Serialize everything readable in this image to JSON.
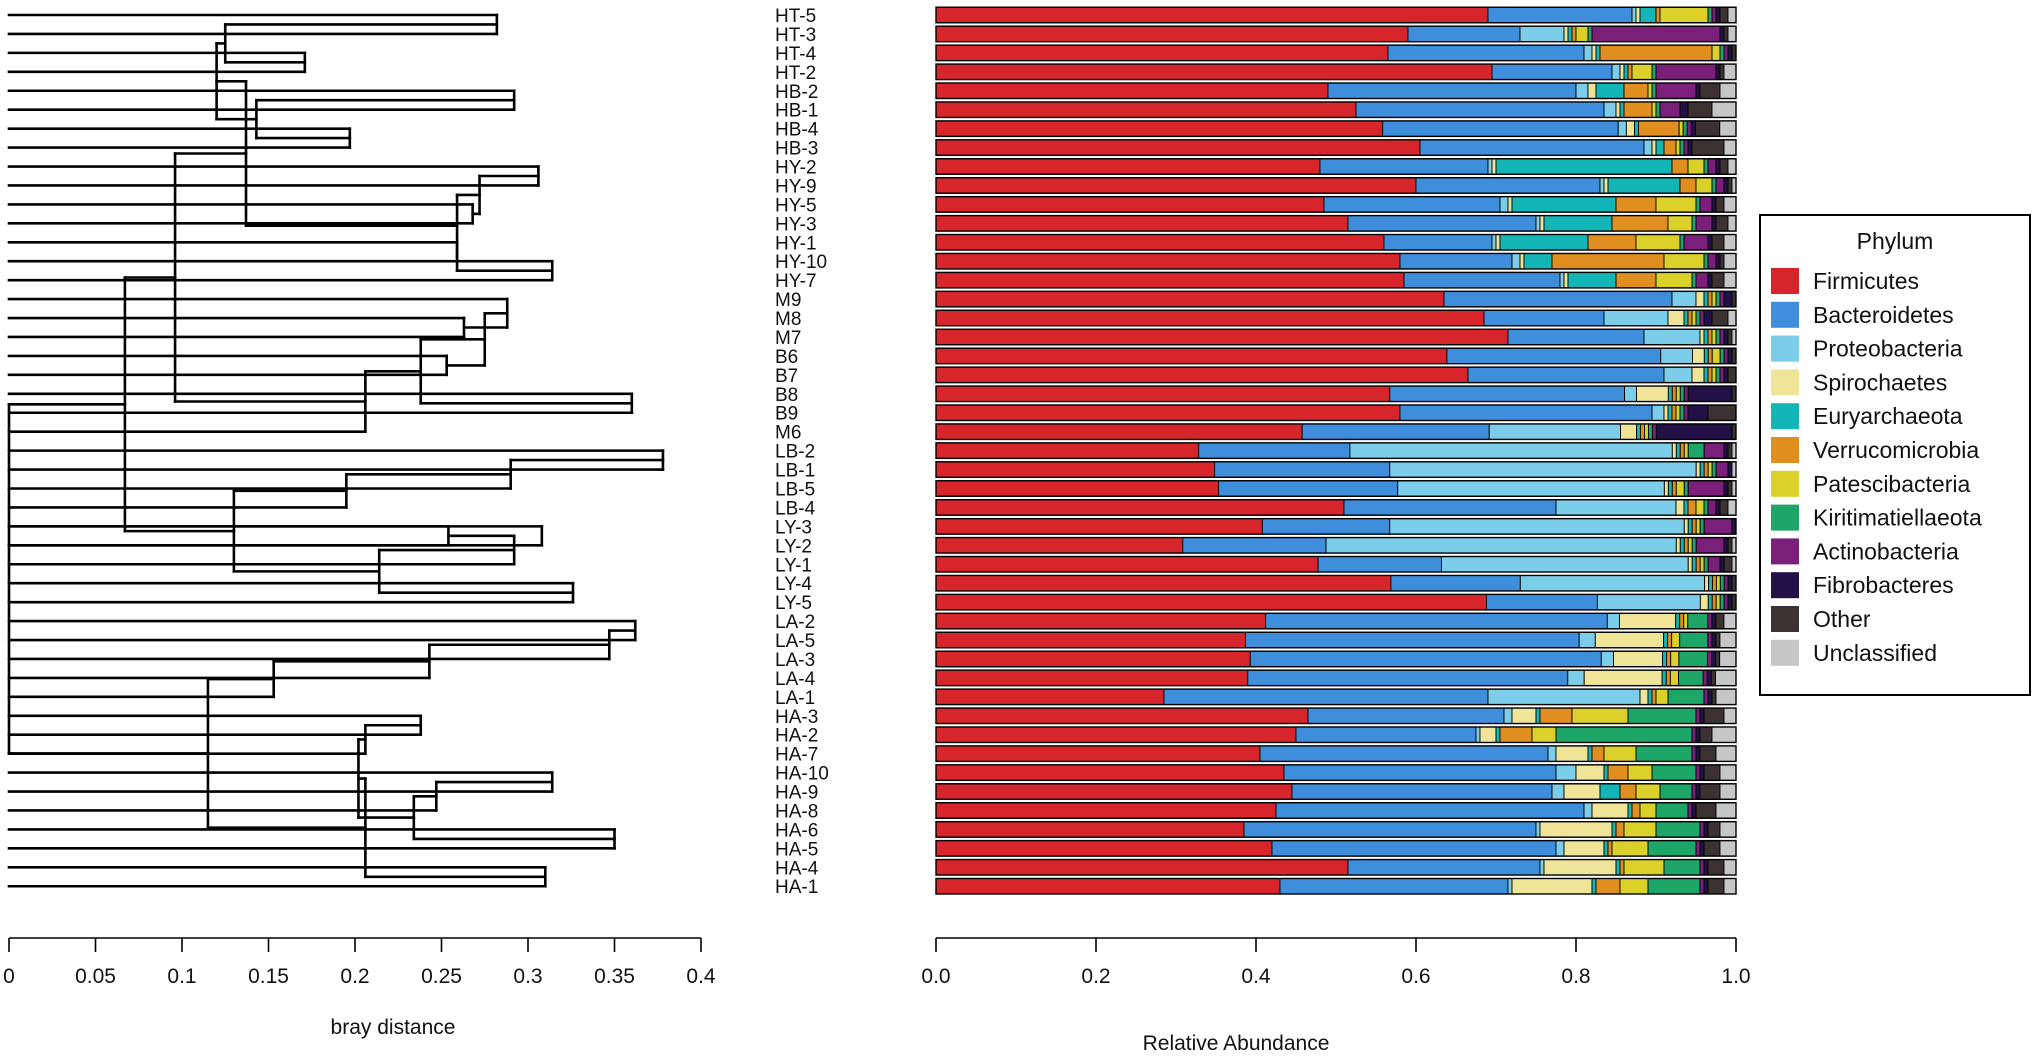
{
  "chart_data": [
    {
      "type": "dendrogram",
      "xlabel": "bray distance",
      "xlim": [
        0,
        0.4
      ],
      "ticks": [
        0,
        0.05,
        0.1,
        0.15,
        0.2,
        0.25,
        0.3,
        0.35,
        0.4
      ],
      "tick_labels": [
        "0",
        "0.05",
        "0.1",
        "0.15",
        "0.2",
        "0.25",
        "0.3",
        "0.35",
        "0.4"
      ],
      "leaves": [
        "HT-5",
        "HT-3",
        "HT-4",
        "HT-2",
        "HB-2",
        "HB-1",
        "HB-4",
        "HB-3",
        "HY-2",
        "HY-9",
        "HY-5",
        "HY-3",
        "HY-1",
        "HY-10",
        "HY-7",
        "M9",
        "M8",
        "M7",
        "B6",
        "B7",
        "B8",
        "B9",
        "M6",
        "LB-2",
        "LB-1",
        "LB-5",
        "LB-4",
        "LY-3",
        "LY-2",
        "LY-1",
        "LY-4",
        "LY-5",
        "LA-2",
        "LA-5",
        "LA-3",
        "LA-4",
        "LA-1",
        "HA-3",
        "HA-2",
        "HA-7",
        "HA-10",
        "HA-9",
        "HA-8",
        "HA-6",
        "HA-5",
        "HA-4",
        "HA-1"
      ],
      "merges": [
        {
          "a": "HT-5",
          "b": "HT-3",
          "height": 0.282
        },
        {
          "a": "HT-4",
          "b": "HT-2",
          "height": 0.171
        },
        {
          "a": "HB-2",
          "b": "HB-1",
          "height": 0.292
        },
        {
          "a": "HB-4",
          "b": "HB-3",
          "height": 0.197
        },
        {
          "a": "HY-2",
          "b": "HY-9",
          "height": 0.306
        },
        {
          "a": "HY-10",
          "b": "HY-7",
          "height": 0.314
        },
        {
          "a": "M8",
          "b": "M7",
          "height": 0.263
        },
        {
          "a": "B6",
          "b": "B7",
          "height": 0.253
        },
        {
          "a": "B8",
          "b": "B9",
          "height": 0.36
        },
        {
          "a": "LB-2",
          "b": "LB-1",
          "height": 0.378
        },
        {
          "a": "LY-3",
          "b": "LY-2",
          "height": 0.308
        },
        {
          "a": "LY-4",
          "b": "LY-5",
          "height": 0.326
        },
        {
          "a": "LA-2",
          "b": "LA-5",
          "height": 0.362
        },
        {
          "a": "HA-10",
          "b": "HA-9",
          "height": 0.314
        },
        {
          "a": "HA-6",
          "b": "HA-5",
          "height": 0.35
        },
        {
          "a": "HA-4",
          "b": "HA-1",
          "height": 0.31
        }
      ]
    },
    {
      "type": "bar",
      "orientation": "horizontal",
      "stacked": true,
      "xlabel": "Relative Abundance",
      "xlim": [
        0,
        1
      ],
      "ticks": [
        0,
        0.2,
        0.4,
        0.6,
        0.8,
        1.0
      ],
      "tick_labels": [
        "0.0",
        "0.2",
        "0.4",
        "0.6",
        "0.8",
        "1.0"
      ],
      "legend_title": "Phylum",
      "legend_position": "right",
      "phyla": [
        "Firmicutes",
        "Bacteroidetes",
        "Proteobacteria",
        "Spirochaetes",
        "Euryarchaeota",
        "Verrucomicrobia",
        "Patescibacteria",
        "Kiritimatiellaeota",
        "Actinobacteria",
        "Fibrobacteres",
        "Other",
        "Unclassified"
      ],
      "colors": [
        "#d7262b",
        "#3f8edc",
        "#7ccdea",
        "#efe497",
        "#14b5b6",
        "#df8e1f",
        "#dcd12a",
        "#1ea568",
        "#7a1f7a",
        "#231046",
        "#3b3231",
        "#c5c6c8"
      ],
      "categories": [
        "HT-5",
        "HT-3",
        "HT-4",
        "HT-2",
        "HB-2",
        "HB-1",
        "HB-4",
        "HB-3",
        "HY-2",
        "HY-9",
        "HY-5",
        "HY-3",
        "HY-1",
        "HY-10",
        "HY-7",
        "M9",
        "M8",
        "M7",
        "B6",
        "B7",
        "B8",
        "B9",
        "M6",
        "LB-2",
        "LB-1",
        "LB-5",
        "LB-4",
        "LY-3",
        "LY-2",
        "LY-1",
        "LY-4",
        "LY-5",
        "LA-2",
        "LA-5",
        "LA-3",
        "LA-4",
        "LA-1",
        "HA-3",
        "HA-2",
        "HA-7",
        "HA-10",
        "HA-9",
        "HA-8",
        "HA-6",
        "HA-5",
        "HA-4",
        "HA-1"
      ],
      "values": [
        [
          0.69,
          0.18,
          0.005,
          0.005,
          0.02,
          0.005,
          0.06,
          0.005,
          0.005,
          0.005,
          0.01,
          0.01
        ],
        [
          0.59,
          0.14,
          0.055,
          0.005,
          0.005,
          0.005,
          0.015,
          0.005,
          0.16,
          0.005,
          0.005,
          0.01
        ],
        [
          0.565,
          0.245,
          0.01,
          0.005,
          0.005,
          0.14,
          0.01,
          0.005,
          0.005,
          0.005,
          0.005,
          0.0
        ],
        [
          0.695,
          0.15,
          0.01,
          0.005,
          0.005,
          0.005,
          0.025,
          0.005,
          0.075,
          0.005,
          0.005,
          0.015
        ],
        [
          0.49,
          0.31,
          0.015,
          0.01,
          0.035,
          0.03,
          0.005,
          0.005,
          0.05,
          0.005,
          0.025,
          0.02
        ],
        [
          0.525,
          0.31,
          0.015,
          0.005,
          0.005,
          0.035,
          0.005,
          0.005,
          0.025,
          0.01,
          0.03,
          0.03
        ],
        [
          0.55,
          0.29,
          0.01,
          0.01,
          0.005,
          0.05,
          0.005,
          0.005,
          0.005,
          0.005,
          0.03,
          0.02
        ],
        [
          0.605,
          0.28,
          0.01,
          0.005,
          0.01,
          0.015,
          0.005,
          0.005,
          0.005,
          0.005,
          0.04,
          0.015
        ],
        [
          0.48,
          0.21,
          0.005,
          0.005,
          0.22,
          0.02,
          0.02,
          0.005,
          0.01,
          0.005,
          0.01,
          0.01
        ],
        [
          0.6,
          0.23,
          0.005,
          0.005,
          0.09,
          0.02,
          0.02,
          0.005,
          0.01,
          0.005,
          0.005,
          0.005
        ],
        [
          0.485,
          0.22,
          0.01,
          0.005,
          0.13,
          0.05,
          0.05,
          0.005,
          0.015,
          0.005,
          0.01,
          0.015
        ],
        [
          0.515,
          0.235,
          0.005,
          0.005,
          0.085,
          0.07,
          0.03,
          0.005,
          0.02,
          0.005,
          0.015,
          0.01
        ],
        [
          0.56,
          0.135,
          0.005,
          0.005,
          0.11,
          0.06,
          0.055,
          0.005,
          0.03,
          0.005,
          0.015,
          0.015
        ],
        [
          0.58,
          0.14,
          0.01,
          0.005,
          0.035,
          0.14,
          0.05,
          0.005,
          0.01,
          0.005,
          0.005,
          0.015
        ],
        [
          0.585,
          0.195,
          0.005,
          0.005,
          0.06,
          0.05,
          0.045,
          0.005,
          0.015,
          0.005,
          0.015,
          0.015
        ],
        [
          0.635,
          0.285,
          0.03,
          0.01,
          0.005,
          0.005,
          0.005,
          0.005,
          0.005,
          0.01,
          0.005,
          0.0
        ],
        [
          0.685,
          0.15,
          0.08,
          0.02,
          0.005,
          0.005,
          0.005,
          0.005,
          0.005,
          0.01,
          0.02,
          0.01
        ],
        [
          0.715,
          0.17,
          0.07,
          0.005,
          0.005,
          0.005,
          0.005,
          0.005,
          0.005,
          0.005,
          0.005,
          0.005
        ],
        [
          0.645,
          0.27,
          0.04,
          0.015,
          0.005,
          0.005,
          0.01,
          0.005,
          0.005,
          0.005,
          0.005,
          0.0
        ],
        [
          0.665,
          0.245,
          0.035,
          0.015,
          0.005,
          0.005,
          0.005,
          0.005,
          0.005,
          0.005,
          0.01,
          0.0
        ],
        [
          0.57,
          0.295,
          0.015,
          0.04,
          0.005,
          0.005,
          0.005,
          0.005,
          0.005,
          0.055,
          0.005,
          0.0
        ],
        [
          0.58,
          0.315,
          0.015,
          0.005,
          0.005,
          0.005,
          0.005,
          0.005,
          0.005,
          0.025,
          0.035,
          0.0
        ],
        [
          0.46,
          0.235,
          0.165,
          0.02,
          0.005,
          0.005,
          0.005,
          0.005,
          0.005,
          0.095,
          0.005,
          0.0
        ],
        [
          0.33,
          0.19,
          0.405,
          0.005,
          0.005,
          0.005,
          0.005,
          0.02,
          0.025,
          0.005,
          0.005,
          0.005
        ],
        [
          0.35,
          0.22,
          0.385,
          0.005,
          0.005,
          0.005,
          0.005,
          0.005,
          0.015,
          0.005,
          0.0,
          0.005
        ],
        [
          0.355,
          0.225,
          0.335,
          0.005,
          0.005,
          0.005,
          0.01,
          0.005,
          0.045,
          0.005,
          0.005,
          0.005
        ],
        [
          0.51,
          0.265,
          0.15,
          0.01,
          0.005,
          0.01,
          0.01,
          0.005,
          0.01,
          0.005,
          0.01,
          0.01
        ],
        [
          0.41,
          0.16,
          0.37,
          0.005,
          0.005,
          0.005,
          0.005,
          0.005,
          0.035,
          0.005,
          0.0,
          0.0
        ],
        [
          0.31,
          0.18,
          0.44,
          0.005,
          0.005,
          0.005,
          0.005,
          0.005,
          0.035,
          0.005,
          0.005,
          0.005
        ],
        [
          0.48,
          0.155,
          0.31,
          0.005,
          0.005,
          0.005,
          0.005,
          0.005,
          0.015,
          0.005,
          0.01,
          0.005
        ],
        [
          0.58,
          0.165,
          0.235,
          0.005,
          0.005,
          0.005,
          0.005,
          0.005,
          0.005,
          0.005,
          0.005,
          0.0
        ],
        [
          0.695,
          0.14,
          0.13,
          0.01,
          0.005,
          0.005,
          0.005,
          0.005,
          0.005,
          0.005,
          0.005,
          0.0
        ],
        [
          0.41,
          0.425,
          0.015,
          0.07,
          0.005,
          0.005,
          0.005,
          0.025,
          0.005,
          0.005,
          0.01,
          0.015
        ],
        [
          0.385,
          0.415,
          0.02,
          0.085,
          0.005,
          0.005,
          0.01,
          0.035,
          0.005,
          0.005,
          0.005,
          0.02
        ],
        [
          0.385,
          0.43,
          0.015,
          0.06,
          0.005,
          0.005,
          0.01,
          0.035,
          0.005,
          0.005,
          0.005,
          0.02
        ],
        [
          0.38,
          0.39,
          0.02,
          0.095,
          0.005,
          0.005,
          0.01,
          0.03,
          0.005,
          0.005,
          0.005,
          0.025
        ],
        [
          0.285,
          0.405,
          0.19,
          0.01,
          0.005,
          0.005,
          0.015,
          0.045,
          0.005,
          0.005,
          0.005,
          0.025
        ],
        [
          0.465,
          0.245,
          0.01,
          0.03,
          0.005,
          0.04,
          0.07,
          0.085,
          0.005,
          0.005,
          0.025,
          0.015
        ],
        [
          0.45,
          0.225,
          0.005,
          0.02,
          0.005,
          0.04,
          0.03,
          0.17,
          0.005,
          0.005,
          0.015,
          0.03
        ],
        [
          0.405,
          0.36,
          0.01,
          0.04,
          0.005,
          0.015,
          0.04,
          0.07,
          0.005,
          0.005,
          0.02,
          0.025
        ],
        [
          0.435,
          0.34,
          0.025,
          0.035,
          0.005,
          0.025,
          0.03,
          0.055,
          0.005,
          0.005,
          0.02,
          0.02
        ],
        [
          0.445,
          0.325,
          0.015,
          0.045,
          0.025,
          0.02,
          0.03,
          0.04,
          0.005,
          0.005,
          0.025,
          0.02
        ],
        [
          0.425,
          0.385,
          0.01,
          0.045,
          0.005,
          0.01,
          0.02,
          0.04,
          0.005,
          0.005,
          0.025,
          0.025
        ],
        [
          0.385,
          0.365,
          0.005,
          0.09,
          0.005,
          0.01,
          0.04,
          0.055,
          0.005,
          0.005,
          0.015,
          0.02
        ],
        [
          0.42,
          0.355,
          0.01,
          0.05,
          0.005,
          0.005,
          0.045,
          0.06,
          0.005,
          0.005,
          0.02,
          0.02
        ],
        [
          0.515,
          0.24,
          0.005,
          0.09,
          0.005,
          0.005,
          0.05,
          0.045,
          0.005,
          0.005,
          0.02,
          0.015
        ],
        [
          0.43,
          0.285,
          0.005,
          0.1,
          0.005,
          0.03,
          0.035,
          0.065,
          0.005,
          0.005,
          0.02,
          0.015
        ]
      ]
    }
  ]
}
